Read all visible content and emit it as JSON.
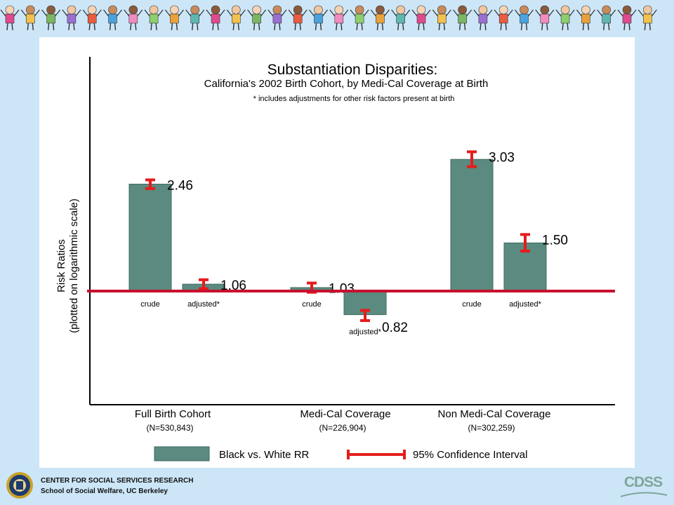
{
  "chart_data": {
    "type": "bar",
    "title": "Substantiation Disparities:",
    "subtitle": "California's 2002 Birth Cohort, by Medi-Cal Coverage at Birth",
    "note": "* includes adjustments for other risk factors present at birth",
    "ylabel_line1": "Risk Ratios",
    "ylabel_line2": "(plotted on logarithmic scale)",
    "yscale": "log",
    "ylim": [
      0.5,
      5.5
    ],
    "baseline": 1.0,
    "groups": [
      {
        "name": "Full Birth Cohort",
        "n": "(N=530,843)",
        "bars": [
          {
            "label": "crude",
            "value": 2.46,
            "value_text": "2.46",
            "ci": [
              2.37,
              2.55
            ]
          },
          {
            "label": "adjusted*",
            "value": 1.06,
            "value_text": "1.06",
            "ci": [
              1.02,
              1.1
            ]
          }
        ]
      },
      {
        "name": "Medi-Cal Coverage",
        "n": "(N=226,904)",
        "bars": [
          {
            "label": "crude",
            "value": 1.03,
            "value_text": "1.03",
            "ci": [
              0.99,
              1.07
            ]
          },
          {
            "label": "adjusted*",
            "value": 0.82,
            "value_text": "0.82",
            "ci": [
              0.78,
              0.85
            ]
          }
        ]
      },
      {
        "name": "Non Medi-Cal Coverage",
        "n": "(N=302,259)",
        "bars": [
          {
            "label": "crude",
            "value": 3.03,
            "value_text": "3.03",
            "ci": [
              2.85,
              3.23
            ]
          },
          {
            "label": "adjusted*",
            "value": 1.5,
            "value_text": "1.50",
            "ci": [
              1.4,
              1.61
            ]
          }
        ]
      }
    ],
    "legend": {
      "bar_label": "Black vs. White RR",
      "ci_label": "95% Confidence Interval"
    },
    "colors": {
      "bar": "#5b8a80",
      "bar_stroke": "#3f6a60",
      "ci": "#e51c1c",
      "baseline": "#c8102e"
    },
    "grid": false
  },
  "footer": {
    "line1": "CENTER FOR SOCIAL SERVICES RESEARCH",
    "line2": "School of Social Welfare, UC Berkeley",
    "right_logo_text": "CDSS"
  }
}
